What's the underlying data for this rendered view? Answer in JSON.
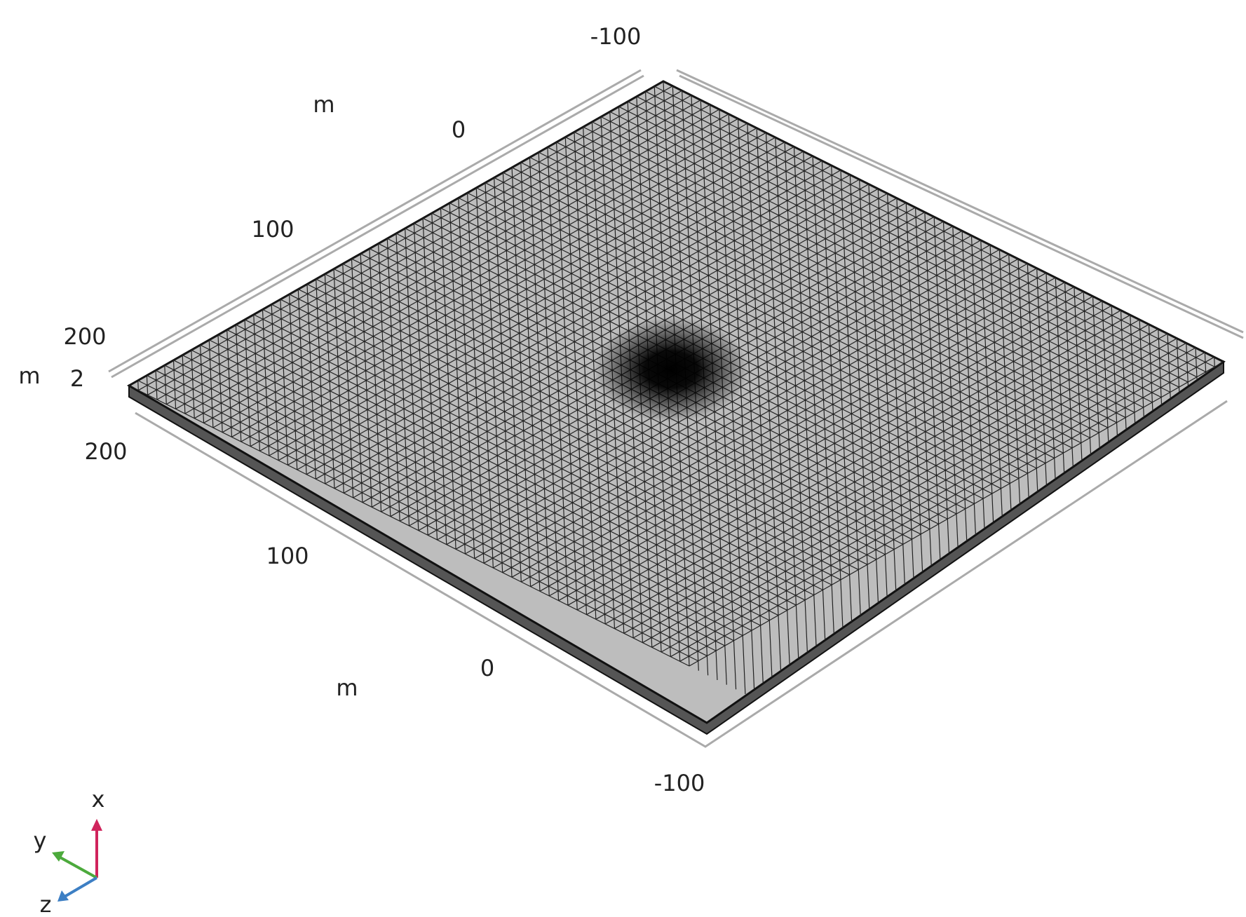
{
  "view": {
    "back_axis": {
      "unit": "m",
      "labels": [
        "-100",
        "0",
        "100",
        "200"
      ]
    },
    "z_axis": {
      "unit": "m",
      "labels": [
        "2"
      ]
    },
    "front_axis": {
      "unit": "m",
      "labels": [
        "200",
        "100",
        "0",
        "-100"
      ]
    },
    "triad": {
      "x": "x",
      "y": "y",
      "z": "z"
    }
  }
}
